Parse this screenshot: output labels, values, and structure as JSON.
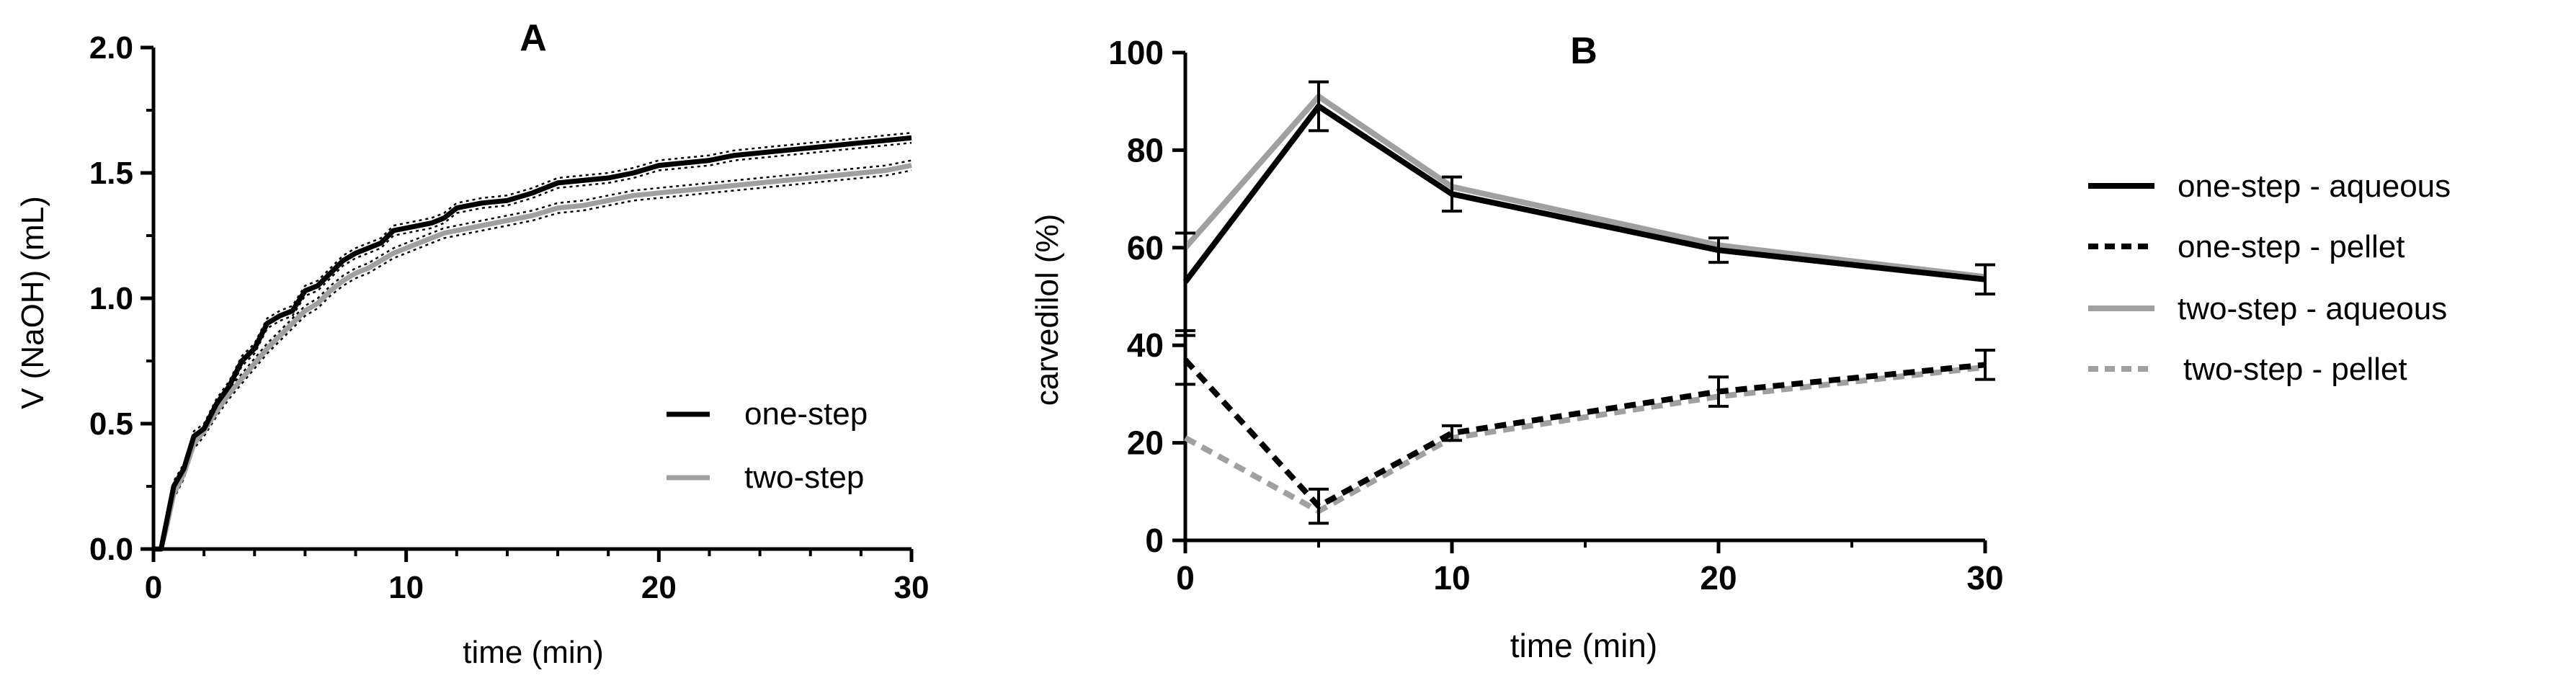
{
  "chart_data": [
    {
      "type": "line",
      "panel_label": "A",
      "title": "",
      "xlabel": "time (min)",
      "ylabel": "V (NaOH) (mL)",
      "xlim": [
        0,
        30
      ],
      "ylim": [
        0,
        2.0
      ],
      "xticks": [
        "0",
        "10",
        "20",
        "30"
      ],
      "yticks": [
        "0.0",
        "0.5",
        "1.0",
        "1.5",
        "2.0"
      ],
      "legend_position": "bottom-right",
      "band_style": "dotted confidence band around each curve",
      "series": [
        {
          "name": "one-step",
          "color": "#000000",
          "band": 0.02,
          "x": [
            0,
            0.3,
            0.5,
            0.8,
            1.2,
            1.6,
            2.0,
            2.5,
            3.0,
            3.5,
            4.0,
            4.5,
            5.0,
            5.5,
            6.0,
            6.5,
            7.0,
            7.5,
            8.0,
            8.5,
            9.0,
            9.5,
            10.0,
            10.5,
            11.0,
            11.5,
            12.0,
            12.5,
            13.0,
            14.0,
            15.0,
            16.0,
            17.0,
            18.0,
            19.0,
            20.0,
            21.0,
            22.0,
            23.0,
            24.0,
            25.0,
            26.0,
            27.0,
            28.0,
            29.0,
            30.0
          ],
          "values": [
            0,
            0.0,
            0.1,
            0.25,
            0.32,
            0.45,
            0.48,
            0.58,
            0.65,
            0.75,
            0.8,
            0.9,
            0.93,
            0.95,
            1.03,
            1.05,
            1.1,
            1.15,
            1.18,
            1.2,
            1.22,
            1.27,
            1.28,
            1.29,
            1.3,
            1.32,
            1.36,
            1.37,
            1.38,
            1.39,
            1.42,
            1.46,
            1.47,
            1.48,
            1.5,
            1.53,
            1.54,
            1.55,
            1.57,
            1.58,
            1.59,
            1.6,
            1.61,
            1.62,
            1.63,
            1.64
          ]
        },
        {
          "name": "two-step",
          "color": "#a0a0a0",
          "band": 0.02,
          "x": [
            0,
            0.3,
            0.5,
            0.8,
            1.2,
            1.6,
            2.0,
            2.5,
            3.0,
            3.5,
            4.0,
            4.5,
            5.0,
            5.5,
            6.0,
            6.5,
            7.0,
            7.5,
            8.0,
            8.5,
            9.0,
            9.5,
            10.0,
            10.5,
            11.0,
            11.5,
            12.0,
            12.5,
            13.0,
            14.0,
            15.0,
            16.0,
            17.0,
            18.0,
            19.0,
            20.0,
            21.0,
            22.0,
            23.0,
            24.0,
            25.0,
            26.0,
            27.0,
            28.0,
            29.0,
            30.0
          ],
          "values": [
            0,
            0.0,
            0.08,
            0.22,
            0.3,
            0.42,
            0.47,
            0.55,
            0.62,
            0.68,
            0.74,
            0.8,
            0.85,
            0.9,
            0.95,
            0.98,
            1.03,
            1.07,
            1.1,
            1.12,
            1.15,
            1.18,
            1.2,
            1.22,
            1.24,
            1.26,
            1.27,
            1.28,
            1.29,
            1.31,
            1.33,
            1.36,
            1.37,
            1.39,
            1.41,
            1.42,
            1.43,
            1.44,
            1.45,
            1.46,
            1.47,
            1.48,
            1.49,
            1.5,
            1.51,
            1.53
          ]
        }
      ]
    },
    {
      "type": "line",
      "panel_label": "B",
      "title": "",
      "xlabel": "time (min)",
      "ylabel": "carvedilol  (%)",
      "xlim": [
        0,
        30
      ],
      "ylim": [
        0,
        100
      ],
      "xticks": [
        "0",
        "10",
        "20",
        "30"
      ],
      "yticks": [
        "0",
        "20",
        "40",
        "60",
        "80",
        "100"
      ],
      "legend_position": "outside-right",
      "x": [
        0,
        5,
        10,
        20,
        30
      ],
      "series": [
        {
          "name": "one-step - aqueous",
          "color": "#000000",
          "dash": "solid",
          "values": [
            53,
            89,
            71,
            59.5,
            53.5
          ],
          "err": [
            10,
            5,
            3.5,
            2.5,
            3
          ]
        },
        {
          "name": "one-step - pellet",
          "color": "#000000",
          "dash": "dashed",
          "values": [
            37,
            7,
            22,
            30.5,
            36
          ],
          "err": [
            5,
            3.5,
            1.5,
            3,
            3
          ]
        },
        {
          "name": "two-step - aqueous",
          "color": "#a0a0a0",
          "dash": "solid",
          "values": [
            60,
            91,
            72.5,
            60.5,
            54
          ],
          "err": [
            0,
            0,
            0,
            0,
            0
          ]
        },
        {
          "name": "two-step - pellet",
          "color": "#a0a0a0",
          "dash": "dashed",
          "values": [
            21,
            6,
            21,
            29.5,
            35.5
          ],
          "err": [
            0,
            0,
            0,
            0,
            0
          ]
        }
      ]
    }
  ]
}
